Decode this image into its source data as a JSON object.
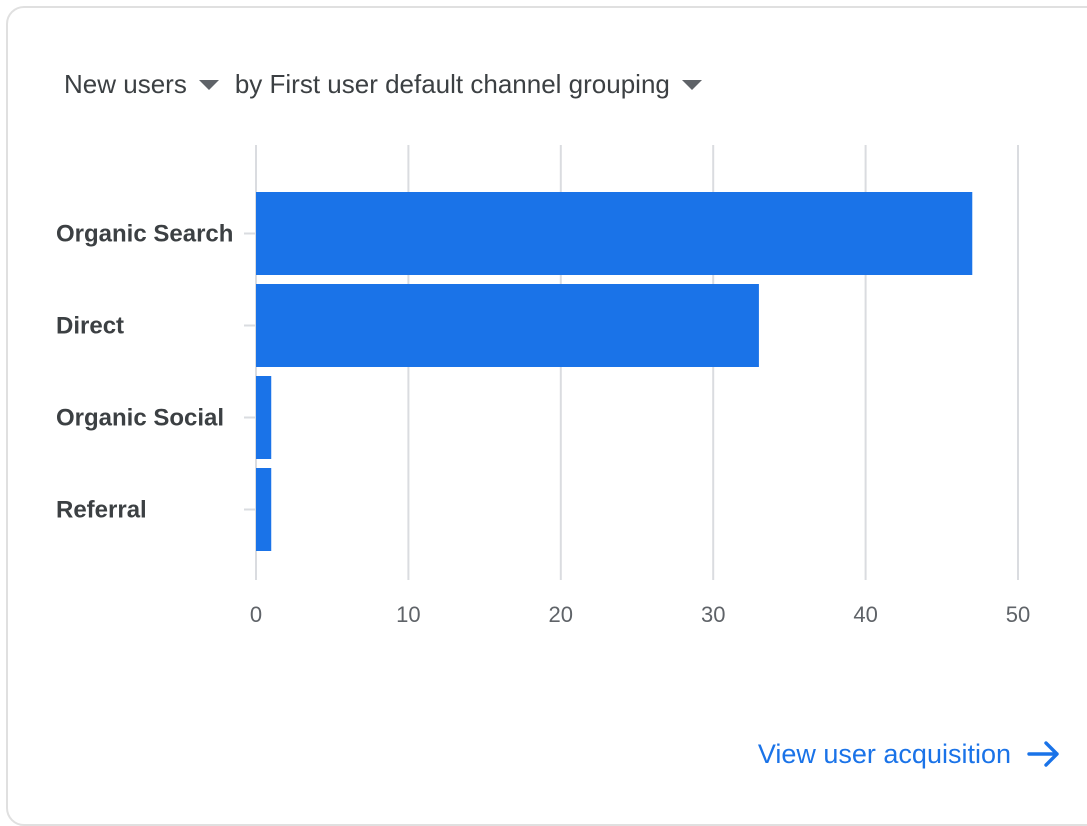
{
  "header": {
    "metric_label": "New users",
    "dimension_label": "by First user default channel grouping"
  },
  "link": {
    "label": "View user acquisition",
    "icon": "arrow-right-icon"
  },
  "colors": {
    "bar": "#1a73e8",
    "grid": "#dadce0",
    "tick_text": "#5f6368",
    "category_text": "#3c4043",
    "link": "#1a73e8"
  },
  "chart_data": {
    "type": "bar",
    "orientation": "horizontal",
    "categories": [
      "Organic Search",
      "Direct",
      "Organic Social",
      "Referral"
    ],
    "values": [
      47,
      33,
      1,
      1
    ],
    "xlim": [
      0,
      50
    ],
    "xticks": [
      "0",
      "10",
      "20",
      "30",
      "40",
      "50"
    ],
    "grid": true
  }
}
